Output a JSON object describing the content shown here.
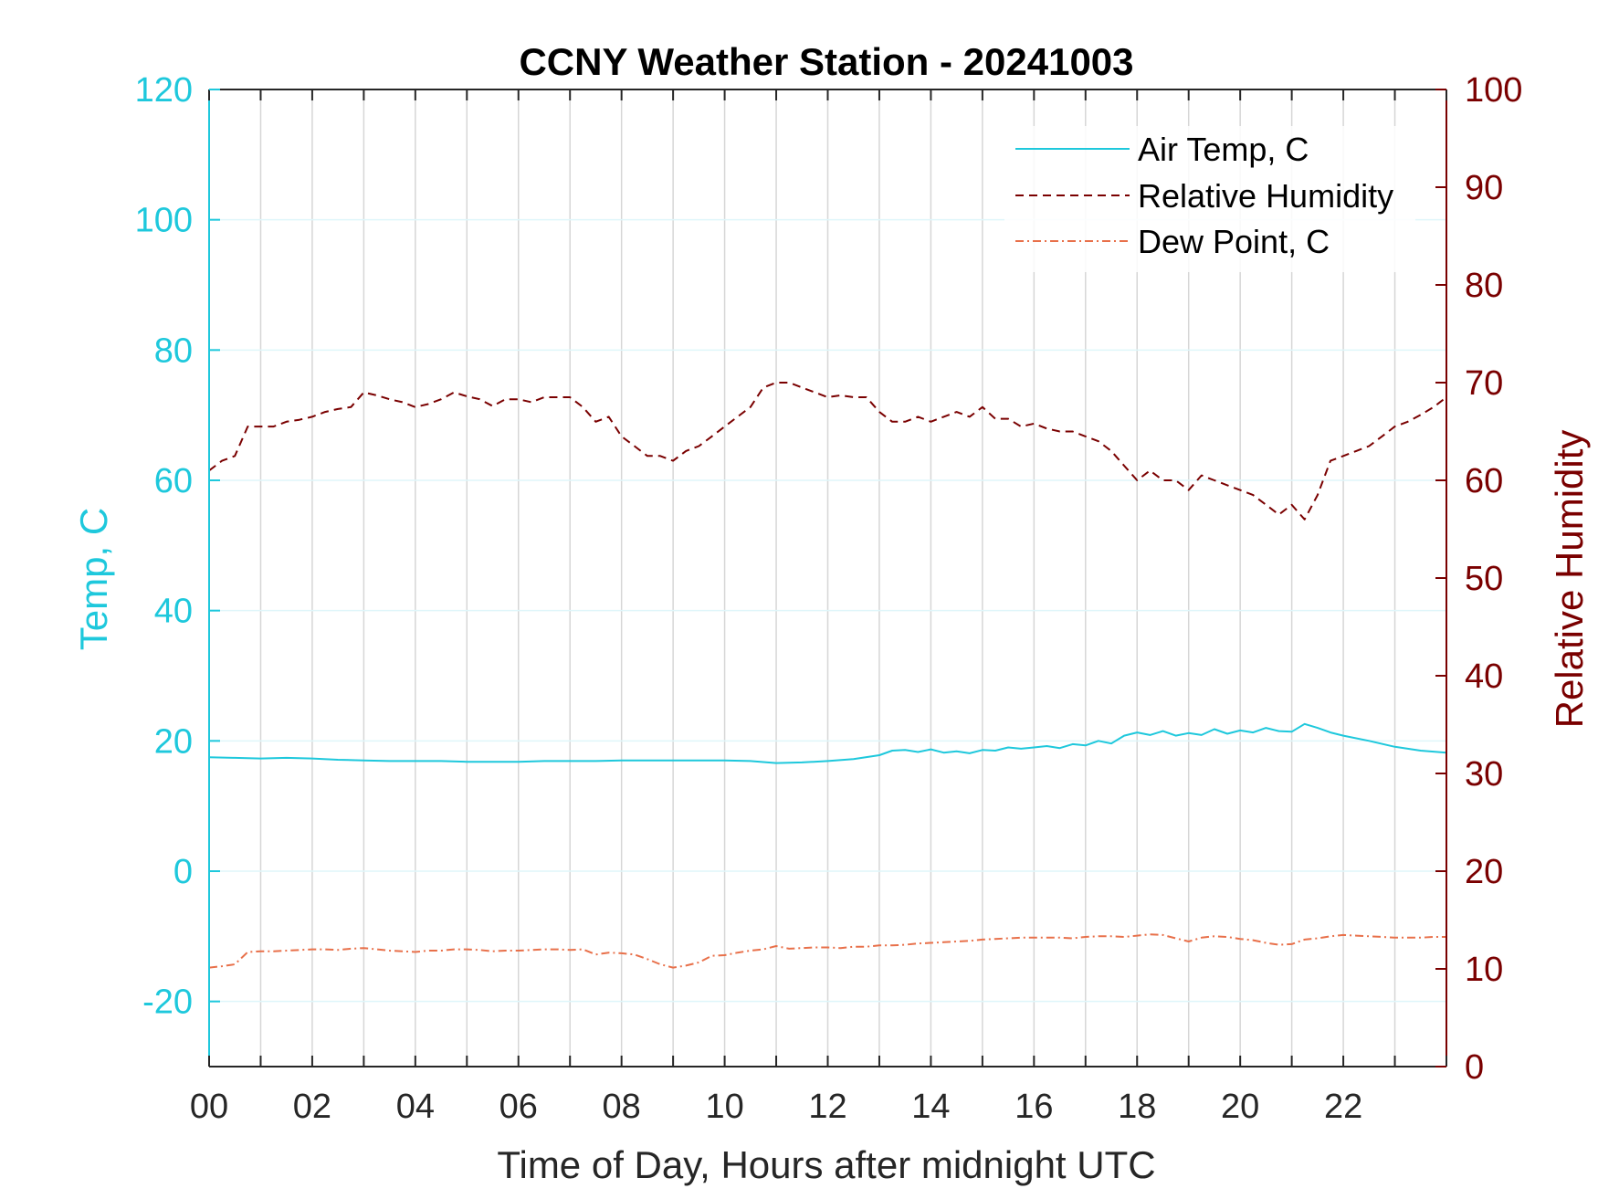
{
  "chart_data": {
    "type": "line",
    "title": "CCNY Weather Station - 20241003",
    "xlabel": "Time of Day, Hours after midnight UTC",
    "ylabel_left": "Temp, C",
    "ylabel_right": "Relative Humidity",
    "xlim": [
      0,
      24
    ],
    "ylim_left": [
      -30,
      120
    ],
    "ylim_right": [
      0,
      100
    ],
    "x_ticks": [
      0,
      2,
      4,
      6,
      8,
      10,
      12,
      14,
      16,
      18,
      20,
      22
    ],
    "x_tick_labels": [
      "00",
      "02",
      "04",
      "06",
      "08",
      "10",
      "12",
      "14",
      "16",
      "18",
      "20",
      "22"
    ],
    "y_left_ticks": [
      -20,
      0,
      20,
      40,
      60,
      80,
      100,
      120
    ],
    "y_left_tick_labels": [
      "-20",
      "0",
      "20",
      "40",
      "60",
      "80",
      "100",
      "120"
    ],
    "y_right_ticks": [
      0,
      10,
      20,
      30,
      40,
      50,
      60,
      70,
      80,
      90,
      100
    ],
    "y_right_tick_labels": [
      "0",
      "10",
      "20",
      "30",
      "40",
      "50",
      "60",
      "70",
      "80",
      "90",
      "100"
    ],
    "grid": true,
    "legend_position": "top-right",
    "colors": {
      "left_axis": "#1EC8DC",
      "right_axis": "#7A0000",
      "dew_point": "#E8704A"
    },
    "series": [
      {
        "name": "Air Temp, C",
        "axis": "left",
        "style": "solid",
        "color": "#1EC8DC",
        "x": [
          0,
          0.5,
          1,
          1.5,
          2,
          2.5,
          3,
          3.5,
          4,
          4.5,
          5,
          5.5,
          6,
          6.5,
          7,
          7.5,
          8,
          8.5,
          9,
          9.5,
          10,
          10.5,
          11,
          11.5,
          12,
          12.5,
          13,
          13.25,
          13.5,
          13.75,
          14,
          14.25,
          14.5,
          14.75,
          15,
          15.25,
          15.5,
          15.75,
          16,
          16.25,
          16.5,
          16.75,
          17,
          17.25,
          17.5,
          17.75,
          18,
          18.25,
          18.5,
          18.75,
          19,
          19.25,
          19.5,
          19.75,
          20,
          20.25,
          20.5,
          20.75,
          21,
          21.25,
          21.5,
          21.75,
          22,
          22.5,
          23,
          23.5,
          24
        ],
        "y": [
          17.5,
          17.4,
          17.3,
          17.4,
          17.3,
          17.1,
          17.0,
          16.9,
          16.9,
          16.9,
          16.8,
          16.8,
          16.8,
          16.9,
          16.9,
          16.9,
          17.0,
          17.0,
          17.0,
          17.0,
          17.0,
          16.9,
          16.6,
          16.7,
          16.9,
          17.2,
          17.8,
          18.5,
          18.6,
          18.3,
          18.7,
          18.2,
          18.4,
          18.1,
          18.6,
          18.5,
          19.0,
          18.8,
          19.0,
          19.2,
          18.9,
          19.5,
          19.3,
          20.0,
          19.6,
          20.8,
          21.3,
          20.9,
          21.5,
          20.8,
          21.2,
          20.9,
          21.8,
          21.1,
          21.6,
          21.3,
          22.0,
          21.5,
          21.4,
          22.6,
          22.0,
          21.3,
          20.8,
          20.0,
          19.1,
          18.5,
          18.2
        ]
      },
      {
        "name": "Relative Humidity",
        "axis": "right",
        "style": "dashed",
        "color": "#7A0000",
        "x": [
          0,
          0.25,
          0.5,
          0.75,
          1,
          1.25,
          1.5,
          1.75,
          2,
          2.25,
          2.5,
          2.75,
          3,
          3.25,
          3.5,
          3.75,
          4,
          4.25,
          4.5,
          4.75,
          5,
          5.25,
          5.5,
          5.75,
          6,
          6.25,
          6.5,
          6.75,
          7,
          7.25,
          7.5,
          7.75,
          8,
          8.25,
          8.5,
          8.75,
          9,
          9.25,
          9.5,
          9.75,
          10,
          10.25,
          10.5,
          10.75,
          11,
          11.25,
          11.5,
          11.75,
          12,
          12.25,
          12.5,
          12.75,
          13,
          13.25,
          13.5,
          13.75,
          14,
          14.25,
          14.5,
          14.75,
          15,
          15.25,
          15.5,
          15.75,
          16,
          16.25,
          16.5,
          16.75,
          17,
          17.25,
          17.5,
          17.75,
          18,
          18.25,
          18.5,
          18.75,
          19,
          19.25,
          19.5,
          19.75,
          20,
          20.25,
          20.5,
          20.75,
          21,
          21.25,
          21.5,
          21.75,
          22,
          22.25,
          22.5,
          22.75,
          23,
          23.25,
          23.5,
          23.75,
          24
        ],
        "y": [
          61,
          62,
          62.5,
          65.5,
          65.5,
          65.5,
          66,
          66.2,
          66.5,
          67,
          67.3,
          67.5,
          69,
          68.7,
          68.3,
          68,
          67.5,
          67.8,
          68.3,
          69,
          68.6,
          68.3,
          67.6,
          68.3,
          68.3,
          68,
          68.5,
          68.5,
          68.5,
          67.5,
          66,
          66.5,
          64.5,
          63.5,
          62.5,
          62.5,
          62,
          63,
          63.5,
          64.5,
          65.5,
          66.5,
          67.5,
          69.5,
          70,
          70,
          69.5,
          69,
          68.5,
          68.7,
          68.5,
          68.5,
          67,
          66,
          66,
          66.5,
          66,
          66.5,
          67,
          66.5,
          67.5,
          66.3,
          66.3,
          65.5,
          65.8,
          65.3,
          65,
          65,
          64.5,
          64,
          63,
          61.5,
          60,
          61,
          60,
          60,
          59,
          60.5,
          60,
          59.5,
          59,
          58.5,
          57.5,
          56.5,
          57.5,
          56,
          58.5,
          62,
          62.5,
          63,
          63.5,
          64.5,
          65.5,
          66,
          66.7,
          67.5,
          68.5
        ]
      },
      {
        "name": "Dew Point, C",
        "axis": "left",
        "style": "dashdot",
        "color": "#E8704A",
        "x": [
          0,
          0.25,
          0.5,
          0.75,
          1,
          1.25,
          1.5,
          1.75,
          2,
          2.25,
          2.5,
          2.75,
          3,
          3.25,
          3.5,
          3.75,
          4,
          4.25,
          4.5,
          4.75,
          5,
          5.25,
          5.5,
          5.75,
          6,
          6.25,
          6.5,
          6.75,
          7,
          7.25,
          7.5,
          7.75,
          8,
          8.25,
          8.5,
          8.75,
          9,
          9.25,
          9.5,
          9.75,
          10,
          10.25,
          10.5,
          10.75,
          11,
          11.25,
          11.5,
          11.75,
          12,
          12.25,
          12.5,
          12.75,
          13,
          13.25,
          13.5,
          13.75,
          14,
          14.25,
          14.5,
          14.75,
          15,
          15.25,
          15.5,
          15.75,
          16,
          16.25,
          16.5,
          16.75,
          17,
          17.25,
          17.5,
          17.75,
          18,
          18.25,
          18.5,
          18.75,
          19,
          19.25,
          19.5,
          19.75,
          20,
          20.25,
          20.5,
          20.75,
          21,
          21.25,
          21.5,
          21.75,
          22,
          22.25,
          22.5,
          22.75,
          23,
          23.25,
          23.5,
          23.75,
          24
        ],
        "y": [
          -14.8,
          -14.6,
          -14.3,
          -12.4,
          -12.3,
          -12.3,
          -12.2,
          -12.1,
          -12.0,
          -12.0,
          -12.1,
          -11.9,
          -11.8,
          -12.0,
          -12.2,
          -12.3,
          -12.4,
          -12.2,
          -12.2,
          -12.0,
          -12.0,
          -12.1,
          -12.3,
          -12.2,
          -12.2,
          -12.1,
          -12.0,
          -12.0,
          -12.1,
          -12.0,
          -12.8,
          -12.5,
          -12.6,
          -12.8,
          -13.5,
          -14.3,
          -14.8,
          -14.5,
          -14.0,
          -13.0,
          -12.9,
          -12.5,
          -12.2,
          -12.0,
          -11.5,
          -11.9,
          -11.8,
          -11.7,
          -11.7,
          -11.8,
          -11.6,
          -11.6,
          -11.4,
          -11.4,
          -11.3,
          -11.1,
          -11.0,
          -10.9,
          -10.8,
          -10.7,
          -10.5,
          -10.4,
          -10.3,
          -10.2,
          -10.2,
          -10.2,
          -10.2,
          -10.3,
          -10.1,
          -10.0,
          -10.0,
          -10.1,
          -9.9,
          -9.7,
          -9.8,
          -10.3,
          -10.8,
          -10.2,
          -10.0,
          -10.1,
          -10.4,
          -10.6,
          -11.0,
          -11.3,
          -11.2,
          -10.5,
          -10.3,
          -10.0,
          -9.8,
          -9.9,
          -10.0,
          -10.1,
          -10.2,
          -10.2,
          -10.2,
          -10.1,
          -10.1
        ]
      }
    ]
  }
}
